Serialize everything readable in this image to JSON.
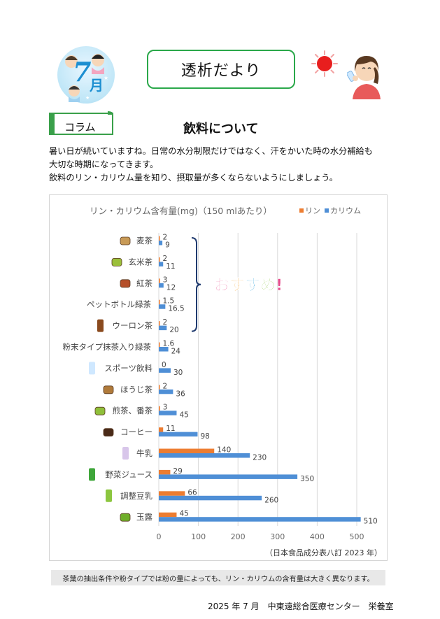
{
  "header": {
    "month_number": "7",
    "month_kanji": "月",
    "title": "透析だより"
  },
  "column": {
    "label": "コラム",
    "title": "飲料について"
  },
  "intro": [
    "暑い日が続いていますね。日常の水分制限だけではなく、汗をかいた時の水分補給も",
    "大切な時期になってきます。",
    "飲料のリン・カリウム量を知り、摂取量が多くならないようにしましょう。"
  ],
  "colors": {
    "phosphorus": "#ed7d31",
    "potassium": "#4f8fd6",
    "title_box_border": "#2aa84a",
    "recommend_bracket": "#1f3a6e"
  },
  "chart_data": {
    "type": "bar",
    "orientation": "horizontal",
    "title": "リン・カリウム含有量(mg)（150 mlあたり）",
    "categories": [
      "麦茶",
      "玄米茶",
      "紅茶",
      "ペットボトル緑茶",
      "ウーロン茶",
      "粉末タイプ抹茶入り緑茶",
      "スポーツ飲料",
      "ほうじ茶",
      "煎茶、番茶",
      "コーヒー",
      "牛乳",
      "野菜ジュース",
      "調整豆乳",
      "玉露"
    ],
    "category_icons": [
      "barley-tea-icon",
      "genmaicha-icon",
      "black-tea-icon",
      "",
      "oolong-bottle-icon",
      "",
      "sports-drink-icon",
      "hojicha-icon",
      "sencha-icon",
      "coffee-icon",
      "milk-icon",
      "vegetable-juice-icon",
      "soy-milk-icon",
      "gyokuro-icon"
    ],
    "series": [
      {
        "name": "リン",
        "color": "#ed7d31",
        "values": [
          2,
          2,
          3,
          1.5,
          2,
          1.6,
          0,
          2,
          3,
          11,
          140,
          29,
          66,
          45
        ],
        "labels": [
          "2",
          "2",
          "3",
          "1.5",
          "2",
          "1.6",
          "0",
          "2",
          "3",
          "11",
          "140",
          "29",
          "66",
          "45"
        ]
      },
      {
        "name": "カリウム",
        "color": "#4f8fd6",
        "values": [
          9,
          11,
          12,
          16.5,
          20,
          24,
          30,
          36,
          45,
          98,
          230,
          350,
          260,
          510
        ],
        "labels": [
          "9",
          "11",
          "12",
          "16.5",
          "20",
          "24",
          "30",
          "36",
          "45",
          "98",
          "230",
          "350",
          "260",
          "510"
        ]
      }
    ],
    "xlim": [
      0,
      500
    ],
    "xticks": [
      "0",
      "100",
      "200",
      "300",
      "400",
      "500"
    ],
    "grid": true,
    "legend_position": "top-right",
    "annotation": "おすすめ!",
    "source": "（日本食品成分表八訂 2023 年）"
  },
  "footnote": "茶葉の抽出条件や粉タイプでは粉の量によっても、リン・カリウムの含有量は大きく異なります。",
  "footer": "2025 年 7 月　中東遠総合医療センター　栄養室"
}
